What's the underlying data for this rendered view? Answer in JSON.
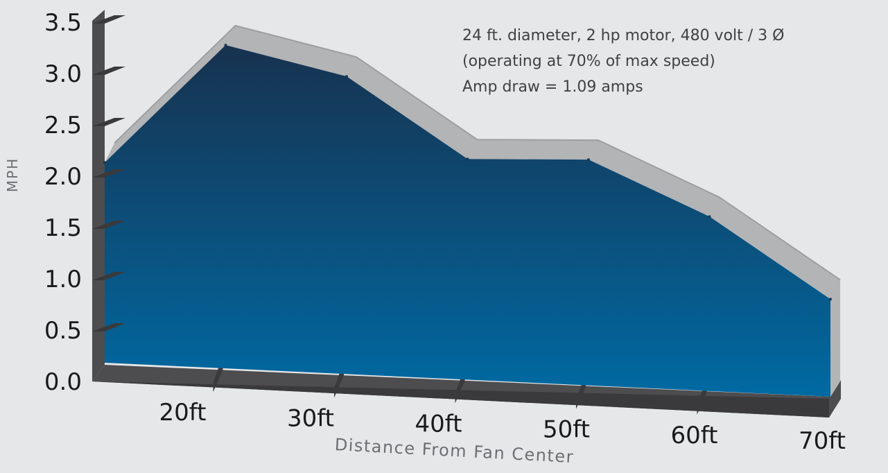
{
  "chart_data": {
    "type": "area",
    "title": "",
    "xlabel": "Distance From Fan Center",
    "ylabel": "MPH",
    "ylim": [
      0,
      3.5
    ],
    "y_ticks": [
      "0.0",
      "0.5",
      "1.0",
      "1.5",
      "2.0",
      "2.5",
      "3.0",
      "3.5"
    ],
    "x_ticks": [
      "20ft",
      "30ft",
      "40ft",
      "50ft",
      "60ft",
      "70ft"
    ],
    "x": [
      10,
      20,
      30,
      40,
      50,
      60,
      70
    ],
    "values": [
      1.95,
      3.15,
      2.9,
      2.15,
      2.2,
      1.7,
      0.95
    ],
    "annotation_lines": [
      "24 ft. diameter, 2 hp motor, 480 volt / 3 Ø",
      "(operating at 70% of max speed)",
      "Amp draw = 1.09 amps"
    ],
    "colors": {
      "area_top": "#17324f",
      "area_bottom": "#006aa3",
      "wall": "#b3b4b6",
      "wall_edge": "#9d9ea0",
      "axis": "#4d4d4f",
      "axis_dark": "#3a3a3c"
    }
  }
}
